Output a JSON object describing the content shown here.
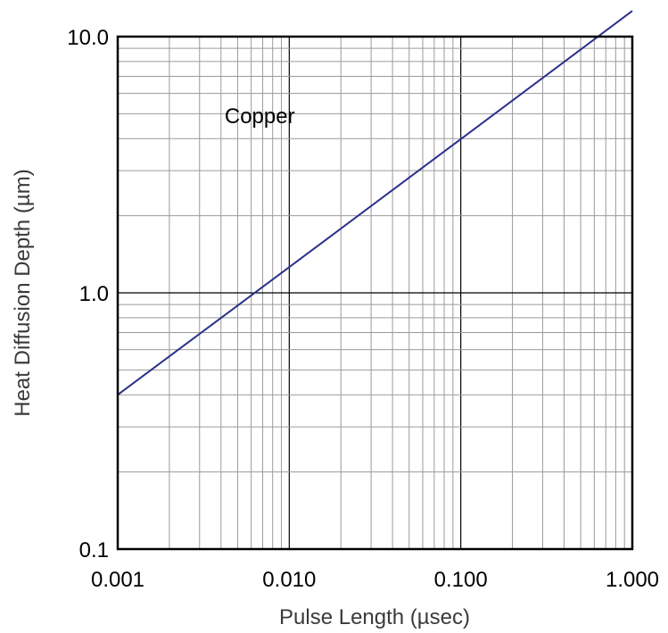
{
  "chart_data": {
    "type": "line",
    "x_scale": "log",
    "y_scale": "log",
    "xlim": [
      0.001,
      1.0
    ],
    "ylim": [
      0.1,
      10.0
    ],
    "grid": true,
    "xlabel": "Pulse Length (µsec)",
    "ylabel": "Heat Diffusion Depth (µm)",
    "x_tick_labels": [
      "0.001",
      "0.010",
      "0.100",
      "1.000"
    ],
    "x_tick_values": [
      0.001,
      0.01,
      0.1,
      1.0
    ],
    "y_tick_labels": [
      "0.1",
      "1.0",
      "10.0"
    ],
    "y_tick_values": [
      0.1,
      1.0,
      10.0
    ],
    "annotation": {
      "text": "Copper",
      "x": 0.0042,
      "y": 4.6
    },
    "series": [
      {
        "color": "#2b2f8c",
        "x": [
          0.001,
          0.01,
          0.1,
          1.0
        ],
        "y": [
          0.4,
          1.26,
          3.98,
          12.6
        ]
      }
    ]
  }
}
